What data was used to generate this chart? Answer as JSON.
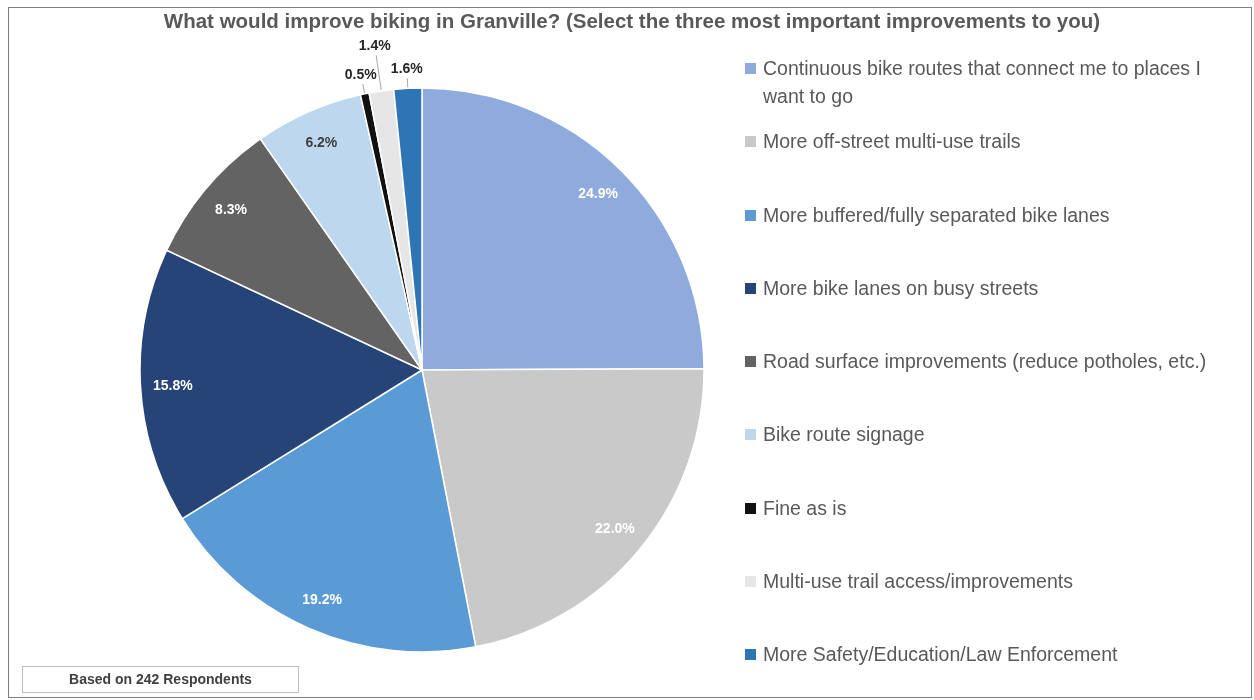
{
  "chart_data": {
    "type": "pie",
    "title": "What would improve biking in Granville? (Select the three most important improvements to you)",
    "categories": [
      "Continuous bike routes that connect me to places I want to go",
      "More off-street multi-use trails",
      "More buffered/fully separated bike lanes",
      "More bike lanes on busy streets",
      "Road surface improvements (reduce potholes, etc.)",
      "Bike route signage",
      "Fine as is",
      "Multi-use trail access/improvements",
      "More Safety/Education/Law Enforcement"
    ],
    "values": [
      24.9,
      22.0,
      19.2,
      15.8,
      8.3,
      6.2,
      0.5,
      1.4,
      1.6
    ],
    "colors": [
      "#8faadc",
      "#c9c9c9",
      "#5b9bd5",
      "#264478",
      "#636363",
      "#bdd7ee",
      "#111111",
      "#e7e6e6",
      "#2e75b6"
    ],
    "value_labels": [
      "24.9%",
      "22.0%",
      "19.2%",
      "15.8%",
      "8.3%",
      "6.2%",
      "0.5%",
      "1.4%",
      "1.6%"
    ],
    "legend": "right",
    "annotations": [
      "Based on 242 Respondents"
    ]
  }
}
